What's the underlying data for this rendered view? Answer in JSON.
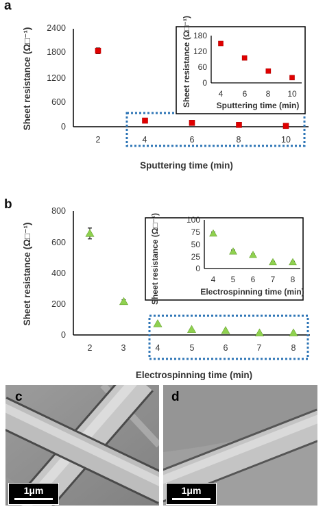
{
  "chart_data": [
    {
      "panel": "a",
      "type": "scatter",
      "xlabel": "Sputtering time (min)",
      "ylabel": "Sheet resistance (Ω□⁻¹)",
      "xticks": [
        "2",
        "4",
        "6",
        "8",
        "10"
      ],
      "yticks": [
        "0",
        "600",
        "1200",
        "1800",
        "2400"
      ],
      "ylim": [
        0,
        2400
      ],
      "x": [
        2,
        4,
        6,
        8,
        10
      ],
      "y": [
        1860,
        150,
        95,
        45,
        20
      ],
      "err": [
        70,
        12,
        8,
        6,
        4
      ],
      "marker_color": "#e00000",
      "marker_shape": "square",
      "highlight_box": "x 4–10 (dotted blue)",
      "inset": {
        "type": "scatter",
        "xlabel": "Sputtering time (min)",
        "ylabel": "Sheet resistance (Ω□⁻¹)",
        "xticks": [
          "4",
          "6",
          "8",
          "10"
        ],
        "yticks": [
          "0",
          "60",
          "120",
          "180"
        ],
        "ylim": [
          0,
          180
        ],
        "x": [
          4,
          6,
          8,
          10
        ],
        "y": [
          150,
          95,
          45,
          20
        ],
        "err": [
          5,
          4,
          4,
          3
        ]
      }
    },
    {
      "panel": "b",
      "type": "scatter",
      "xlabel": "Electrospinning time (min)",
      "ylabel": "Sheet resistance (Ω□⁻¹)",
      "xticks": [
        "2",
        "3",
        "4",
        "5",
        "6",
        "7",
        "8"
      ],
      "yticks": [
        "0",
        "200",
        "400",
        "600",
        "800"
      ],
      "ylim": [
        0,
        800
      ],
      "x": [
        2,
        3,
        4,
        5,
        6,
        7,
        8
      ],
      "y": [
        655,
        215,
        72,
        35,
        28,
        13,
        13
      ],
      "err": [
        35,
        12,
        5,
        4,
        3,
        2,
        2
      ],
      "marker_color": "#8fd14f",
      "marker_shape": "triangle",
      "highlight_box": "x 4–8 (dotted blue)",
      "inset": {
        "type": "scatter",
        "xlabel": "Electrospinning time (min)",
        "ylabel": "Sheet resistance (Ω□⁻¹)",
        "xticks": [
          "4",
          "5",
          "6",
          "7",
          "8"
        ],
        "yticks": [
          "0",
          "25",
          "50",
          "75",
          "100"
        ],
        "ylim": [
          0,
          100
        ],
        "x": [
          4,
          5,
          6,
          7,
          8
        ],
        "y": [
          72,
          35,
          28,
          13,
          13
        ],
        "err": [
          3,
          3,
          2,
          2,
          2
        ]
      }
    }
  ],
  "panels": {
    "a": "a",
    "b": "b",
    "c": "c",
    "d": "d"
  },
  "scalebar": "1μm",
  "colors": {
    "box": "#2e75b6",
    "axis": "#000000",
    "tick": "#333333"
  }
}
